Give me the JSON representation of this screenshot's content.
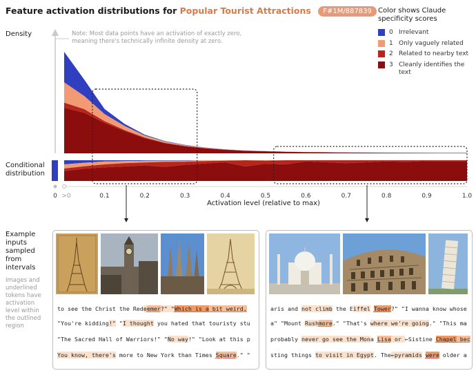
{
  "header": {
    "title_prefix": "Feature activation distributions for",
    "title_feature": "Popular Tourist Attractions",
    "feature_id": "F#1M/887839"
  },
  "labels": {
    "density": "Density",
    "conditional": "Conditional distribution",
    "note": "Note: Most data points have an activation of exactly zero, meaning there's technically infinite density at zero.",
    "examples": "Example inputs sampled from intervals",
    "examples_note": "Images and underlined tokens have activation level within the outlined region"
  },
  "legend": {
    "title": "Color shows Claude specificity scores",
    "items": [
      {
        "score": "0",
        "label": "Irrelevant",
        "color": "#2f3fc0"
      },
      {
        "score": "1",
        "label": "Only vaguely related",
        "color": "#f29a74"
      },
      {
        "score": "2",
        "label": "Related to nearby text",
        "color": "#b8251a"
      },
      {
        "score": "3",
        "label": "Cleanly identifies the text",
        "color": "#8c0d0d"
      }
    ]
  },
  "chart_data": {
    "type": "area",
    "xlabel": "Activation level (relative to max)",
    "ylabel": "Density",
    "xlim": [
      0,
      1
    ],
    "x_ticks": [
      "0",
      ">0",
      "0.1",
      "0.2",
      "0.3",
      "0.4",
      "0.5",
      "0.6",
      "0.7",
      "0.8",
      "0.9",
      "1.0"
    ],
    "x": [
      0.0,
      0.05,
      0.1,
      0.15,
      0.2,
      0.25,
      0.3,
      0.35,
      0.4,
      0.45,
      0.5,
      0.55,
      0.6,
      0.65,
      0.7,
      0.75,
      0.8,
      0.85,
      0.9,
      0.95,
      1.0
    ],
    "series": [
      {
        "name": "3",
        "values": [
          0.45,
          0.4,
          0.3,
          0.22,
          0.15,
          0.1,
          0.07,
          0.05,
          0.035,
          0.025,
          0.02,
          0.015,
          0.012,
          0.01,
          0.008,
          0.007,
          0.006,
          0.005,
          0.004,
          0.003,
          0.003
        ]
      },
      {
        "name": "2",
        "values": [
          0.05,
          0.035,
          0.018,
          0.01,
          0.006,
          0.004,
          0.003,
          0.002,
          0.002,
          0.001,
          0.001,
          0.001,
          0.001,
          0.001,
          0.001,
          0.001,
          0.001,
          0.001,
          0.001,
          0.001,
          0.001
        ]
      },
      {
        "name": "1",
        "values": [
          0.2,
          0.13,
          0.07,
          0.04,
          0.02,
          0.012,
          0.007,
          0.004,
          0.002,
          0.001,
          0.001,
          0.001,
          0.001,
          0.0,
          0.0,
          0.0,
          0.0,
          0.0,
          0.0,
          0.0,
          0.0
        ]
      },
      {
        "name": "0",
        "values": [
          0.3,
          0.16,
          0.05,
          0.02,
          0.008,
          0.005,
          0.003,
          0.002,
          0.001,
          0.001,
          0.0,
          0.0,
          0.0,
          0.0,
          0.0,
          0.0,
          0.0,
          0.0,
          0.0,
          0.0,
          0.0
        ]
      }
    ],
    "conditional_x": [
      0.0,
      0.05,
      0.1,
      0.15,
      0.2,
      0.25,
      0.3,
      0.35,
      0.4,
      0.45,
      0.5,
      0.55,
      0.6,
      0.65,
      0.7,
      0.75,
      0.8,
      0.85,
      0.9,
      0.95,
      1.0
    ],
    "conditional_series": [
      {
        "name": "0",
        "values": [
          0.2,
          0.12,
          0.06,
          0.04,
          0.03,
          0.02,
          0.02,
          0.0,
          0.0,
          0.0,
          0.0,
          0.0,
          0.0,
          0.0,
          0.0,
          0.0,
          0.0,
          0.0,
          0.0,
          0.0,
          0.0
        ]
      },
      {
        "name": "1",
        "values": [
          0.2,
          0.17,
          0.14,
          0.1,
          0.08,
          0.06,
          0.05,
          0.04,
          0.02,
          0.0,
          0.02,
          0.0,
          0.0,
          0.0,
          0.0,
          0.0,
          0.0,
          0.0,
          0.0,
          0.0,
          0.0
        ]
      },
      {
        "name": "2",
        "values": [
          0.12,
          0.12,
          0.14,
          0.16,
          0.14,
          0.24,
          0.15,
          0.12,
          0.08,
          0.3,
          0.15,
          0.2,
          0.06,
          0.1,
          0.14,
          0.1,
          0.06,
          0.08,
          0.04,
          0.04,
          0.04
        ]
      },
      {
        "name": "3",
        "values": [
          0.48,
          0.59,
          0.66,
          0.7,
          0.75,
          0.68,
          0.78,
          0.84,
          0.9,
          0.7,
          0.83,
          0.8,
          0.94,
          0.9,
          0.86,
          0.9,
          0.94,
          0.92,
          0.96,
          0.96,
          0.96
        ]
      }
    ],
    "zero_bar": {
      "score": "0",
      "fraction": 1.0
    },
    "intervals": [
      [
        0.07,
        0.33
      ],
      [
        0.52,
        1.0
      ]
    ]
  },
  "examples_left": {
    "photos": [
      "eiffel-tower-sketch",
      "big-ben",
      "sagrada-familia",
      "eiffel-tower-drawing"
    ],
    "lines": [
      [
        [
          "to see the Christ the Red",
          0
        ],
        [
          "e",
          1
        ],
        [
          "emer",
          2
        ],
        [
          "?\" \"",
          1
        ],
        [
          "Which is a",
          3
        ],
        [
          " bit weird,",
          2
        ],
        [
          " ",
          0
        ]
      ],
      [
        [
          "\"You're kidding",
          0
        ],
        [
          "!\"",
          1
        ],
        [
          " \"",
          0
        ],
        [
          "I thought",
          1
        ],
        [
          " you hated that touristy stu",
          0
        ]
      ],
      [
        [
          "\"The Sacred Hall of Warriors!\" \"",
          0
        ],
        [
          "No way",
          1
        ],
        [
          "!\" \"Look at this p",
          0
        ]
      ],
      [
        [
          "You know, there's",
          1
        ],
        [
          " more to New York than Times ",
          0
        ],
        [
          "Square",
          2
        ],
        [
          ".\" \"",
          0
        ]
      ]
    ]
  },
  "examples_right": {
    "photos": [
      "taj-mahal",
      "colosseum",
      "leaning-tower-pisa"
    ],
    "lines": [
      [
        [
          "aris and ",
          0
        ],
        [
          "not climb",
          1
        ],
        [
          " the E",
          0
        ],
        [
          "iffel",
          1
        ],
        [
          " ",
          0
        ],
        [
          "Tower",
          3
        ],
        [
          "?\" \"I wanna know whose",
          0
        ]
      ],
      [
        [
          "a\" \"Mount ",
          0
        ],
        [
          "Rush",
          1
        ],
        [
          "more",
          2
        ],
        [
          ".\" \"That's ",
          0
        ],
        [
          "where we're going",
          1
        ],
        [
          ".\" \"This ma",
          0
        ]
      ],
      [
        [
          "probably ",
          0
        ],
        [
          "never go see the Mon",
          1
        ],
        [
          "a ",
          0
        ],
        [
          "Lisa",
          2
        ],
        [
          " or ",
          1
        ],
        [
          "←Sistine",
          0
        ],
        [
          " ",
          0
        ],
        [
          "Chapel",
          3
        ],
        [
          " bec",
          2
        ]
      ],
      [
        [
          "sting things ",
          0
        ],
        [
          "to visit in Egypt",
          1
        ],
        [
          ". The",
          0
        ],
        [
          "←py",
          1
        ],
        [
          "ramids",
          1
        ],
        [
          " ",
          0
        ],
        [
          "were",
          3
        ],
        [
          " older a",
          0
        ]
      ]
    ]
  }
}
